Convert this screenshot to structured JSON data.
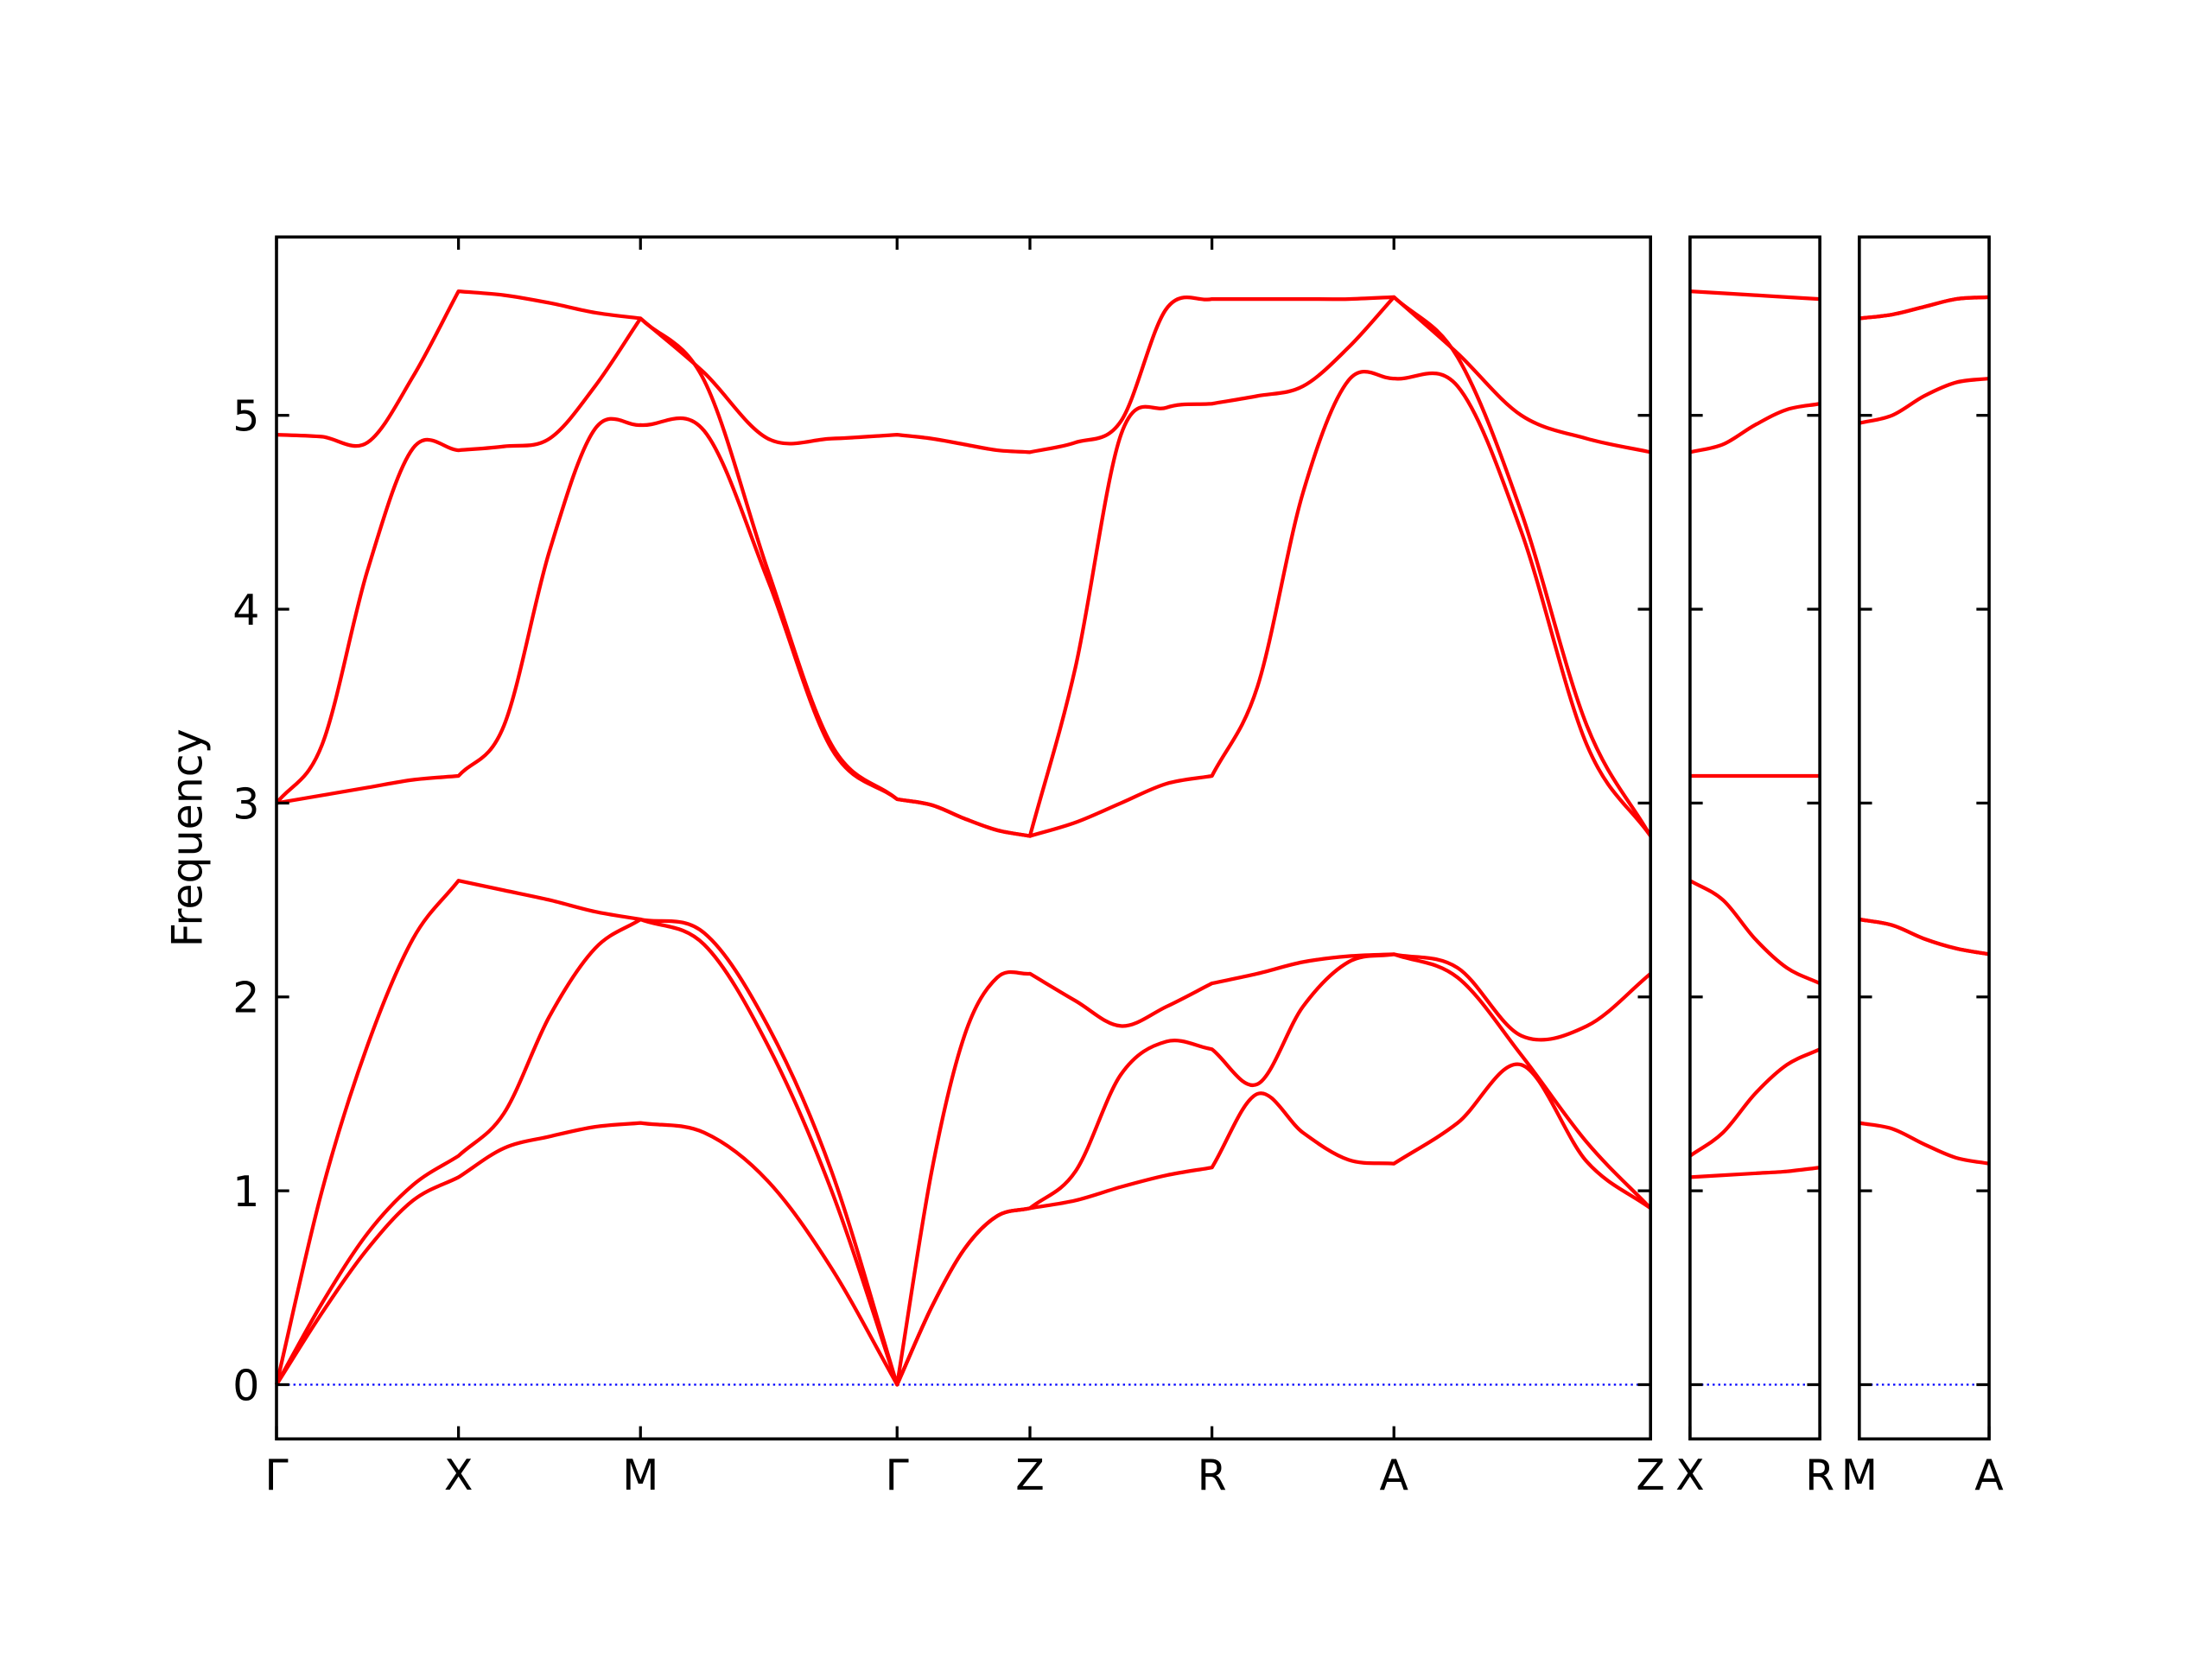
{
  "chart_data": [
    {
      "type": "line",
      "ylabel": "Frequency",
      "color": "#ff0000",
      "hline": {
        "y": 0,
        "color": "#0000ff",
        "style": "dotted"
      },
      "xlim": [
        0,
        7.55
      ],
      "ylim": [
        -0.28,
        5.92
      ],
      "yticks": [
        0,
        1,
        2,
        3,
        4,
        5
      ],
      "ytick_labels": true,
      "xticks": [
        {
          "value": 0,
          "label": "Γ"
        },
        {
          "value": 1,
          "label": "X"
        },
        {
          "value": 2,
          "label": "M"
        },
        {
          "value": 3.41,
          "label": "Γ"
        },
        {
          "value": 4.14,
          "label": "Z"
        },
        {
          "value": 5.14,
          "label": "R"
        },
        {
          "value": 6.14,
          "label": "A"
        },
        {
          "value": 7.55,
          "label": "Z"
        }
      ],
      "x": [
        0,
        0.25,
        0.5,
        0.75,
        1,
        1.25,
        1.5,
        1.75,
        2,
        2.35,
        2.7,
        3.05,
        3.41,
        3.6,
        3.78,
        3.96,
        4.14,
        4.39,
        4.64,
        4.89,
        5.14,
        5.39,
        5.64,
        5.89,
        6.14,
        6.49,
        6.84,
        7.2,
        7.55
      ],
      "series": [
        {
          "values": [
            0,
            0.37,
            0.7,
            0.95,
            1.07,
            1.22,
            1.28,
            1.33,
            1.35,
            1.3,
            1.05,
            0.6,
            0,
            0.4,
            0.7,
            0.87,
            0.91,
            0.95,
            1.02,
            1.08,
            1.12,
            1.5,
            1.3,
            1.16,
            1.14,
            1.35,
            1.65,
            1.15,
            0.91
          ]
        },
        {
          "values": [
            0,
            0.42,
            0.78,
            1.03,
            1.18,
            1.4,
            1.9,
            2.25,
            2.4,
            2.27,
            1.75,
            1.0,
            0,
            0.4,
            0.7,
            0.87,
            0.91,
            1.1,
            1.6,
            1.77,
            1.73,
            1.55,
            1.95,
            2.18,
            2.22,
            2.1,
            1.7,
            1.25,
            0.91
          ]
        },
        {
          "values": [
            0,
            1.0,
            1.75,
            2.3,
            2.6,
            2.55,
            2.5,
            2.44,
            2.4,
            2.33,
            1.85,
            1.1,
            0,
            1.1,
            1.8,
            2.1,
            2.12,
            1.98,
            1.85,
            1.95,
            2.07,
            2.12,
            2.18,
            2.21,
            2.22,
            2.15,
            1.8,
            1.85,
            2.12
          ]
        },
        {
          "values": [
            3.0,
            3.04,
            3.08,
            3.12,
            3.14,
            3.4,
            4.3,
            4.93,
            4.95,
            4.92,
            4.15,
            3.28,
            3.02,
            2.99,
            2.92,
            2.86,
            2.83,
            2.9,
            3.0,
            3.1,
            3.14,
            3.6,
            4.6,
            5.18,
            5.19,
            5.15,
            4.4,
            3.3,
            2.83
          ]
        },
        {
          "values": [
            3.0,
            3.3,
            4.2,
            4.83,
            4.82,
            4.84,
            4.88,
            5.15,
            5.5,
            5.18,
            4.2,
            3.3,
            3.02,
            2.99,
            2.92,
            2.86,
            2.83,
            3.7,
            4.9,
            5.04,
            5.06,
            5.1,
            5.15,
            5.35,
            5.61,
            5.3,
            4.5,
            3.4,
            2.83
          ]
        },
        {
          "values": [
            4.9,
            4.89,
            4.86,
            5.2,
            5.64,
            5.62,
            5.58,
            5.53,
            5.5,
            5.22,
            4.88,
            4.88,
            4.9,
            4.88,
            4.85,
            4.82,
            4.81,
            4.86,
            4.97,
            5.55,
            5.6,
            5.6,
            5.6,
            5.6,
            5.61,
            5.32,
            5.0,
            4.88,
            4.81
          ]
        }
      ]
    },
    {
      "type": "line",
      "color": "#ff0000",
      "hline": {
        "y": 0,
        "color": "#0000ff",
        "style": "dotted"
      },
      "xlim": [
        0,
        0.71
      ],
      "ylim": [
        -0.28,
        5.92
      ],
      "yticks": [
        0,
        1,
        2,
        3,
        4,
        5
      ],
      "ytick_labels": false,
      "xticks": [
        {
          "value": 0,
          "label": "X"
        },
        {
          "value": 0.71,
          "label": "R"
        }
      ],
      "x": [
        0,
        0.18,
        0.355,
        0.53,
        0.71
      ],
      "series": [
        {
          "values": [
            1.07,
            1.08,
            1.09,
            1.1,
            1.12
          ]
        },
        {
          "values": [
            1.18,
            1.3,
            1.5,
            1.65,
            1.73
          ]
        },
        {
          "values": [
            2.6,
            2.5,
            2.3,
            2.15,
            2.07
          ]
        },
        {
          "values": [
            3.14,
            3.14,
            3.14,
            3.14,
            3.14
          ]
        },
        {
          "values": [
            4.81,
            4.85,
            4.95,
            5.03,
            5.06
          ]
        },
        {
          "values": [
            5.64,
            5.63,
            5.62,
            5.61,
            5.6
          ]
        }
      ]
    },
    {
      "type": "line",
      "color": "#ff0000",
      "hline": {
        "y": 0,
        "color": "#0000ff",
        "style": "dotted"
      },
      "xlim": [
        0,
        0.71
      ],
      "ylim": [
        -0.28,
        5.92
      ],
      "yticks": [
        0,
        1,
        2,
        3,
        4,
        5
      ],
      "ytick_labels": false,
      "xticks": [
        {
          "value": 0,
          "label": "M"
        },
        {
          "value": 0.71,
          "label": "A"
        }
      ],
      "x": [
        0,
        0.18,
        0.355,
        0.53,
        0.71
      ],
      "series": [
        {
          "values": [
            1.35,
            1.32,
            1.24,
            1.17,
            1.14
          ]
        },
        {
          "values": [
            2.4,
            2.37,
            2.3,
            2.25,
            2.22
          ]
        },
        {
          "values": [
            2.4,
            2.37,
            2.3,
            2.25,
            2.22
          ]
        },
        {
          "values": [
            4.96,
            5.0,
            5.1,
            5.17,
            5.19
          ]
        },
        {
          "values": [
            5.5,
            5.52,
            5.56,
            5.6,
            5.61
          ]
        },
        {
          "values": [
            5.5,
            5.52,
            5.56,
            5.6,
            5.61
          ]
        }
      ]
    }
  ]
}
